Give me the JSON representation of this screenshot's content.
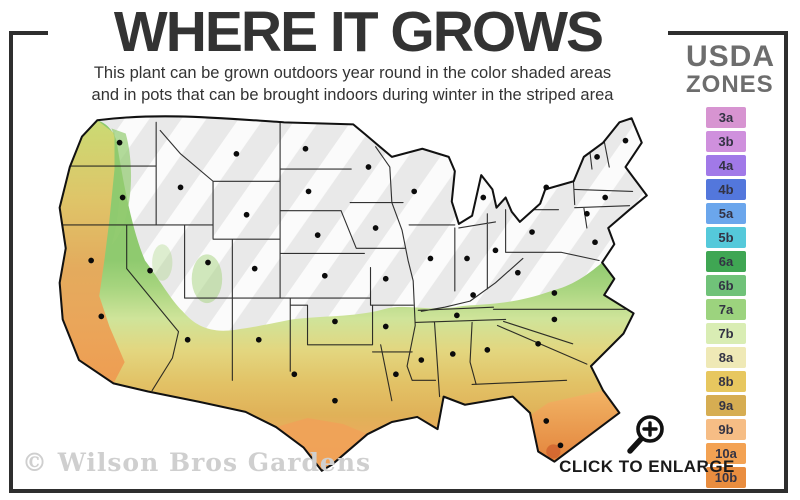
{
  "header": {
    "title": "WHERE IT GROWS",
    "subtitle_line1": "This plant can be grown outdoors year round in the color shaded areas",
    "subtitle_line2": "and in pots that can be brought indoors during winter in the striped area"
  },
  "legend": {
    "title_line1": "USDA",
    "title_line2": "ZONES",
    "zones": [
      {
        "label": "3a",
        "color": "#d794d1"
      },
      {
        "label": "3b",
        "color": "#cf90dd"
      },
      {
        "label": "4a",
        "color": "#a179e8"
      },
      {
        "label": "4b",
        "color": "#5377dc"
      },
      {
        "label": "5a",
        "color": "#6ba6ec"
      },
      {
        "label": "5b",
        "color": "#55c9da"
      },
      {
        "label": "6a",
        "color": "#3fa653"
      },
      {
        "label": "6b",
        "color": "#70c279"
      },
      {
        "label": "7a",
        "color": "#9cd37e"
      },
      {
        "label": "7b",
        "color": "#d9edb4"
      },
      {
        "label": "8a",
        "color": "#efe9b6"
      },
      {
        "label": "8b",
        "color": "#e7c75f"
      },
      {
        "label": "9a",
        "color": "#d6ad52"
      },
      {
        "label": "9b",
        "color": "#f6bd85"
      },
      {
        "label": "10a",
        "color": "#f3a253"
      },
      {
        "label": "10b",
        "color": "#e98d3f"
      }
    ],
    "visible_zone_labels": [
      "3a",
      "3b",
      "4a",
      "4b",
      "5a",
      "5b",
      "6a",
      "6b",
      "7a",
      "7b",
      "8a",
      "8b",
      "9a",
      "9b",
      "10a",
      "10b"
    ]
  },
  "map": {
    "description": "USDA hardiness zone map of the contiguous United States",
    "striped_area_meaning": "bring pots indoors during winter",
    "shaded_area_meaning": "grows outdoors year round",
    "colors": {
      "striped_base": "#e9e9e9",
      "zone_green": "#8fca6f",
      "zone_yellow_green": "#cfe49a",
      "zone_gold": "#e2c266",
      "zone_orange": "#f0974e",
      "state_border": "#1c1c1c"
    }
  },
  "footer": {
    "watermark": "© Wilson Bros Gardens",
    "enlarge_label": "CLICK TO ENLARGE"
  },
  "icons": {
    "magnifier": "zoom-in-magnifier-plus"
  },
  "frame_color": "#2e2e2e"
}
